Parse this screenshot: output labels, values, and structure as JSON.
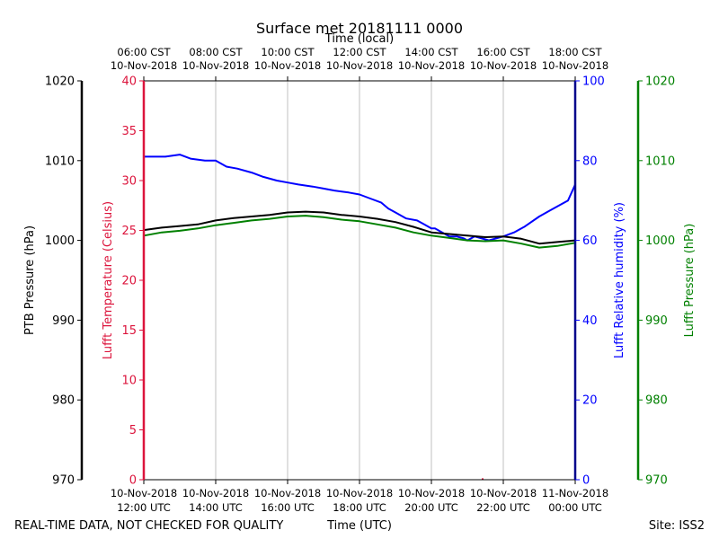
{
  "chart_data": {
    "type": "line",
    "title": "Surface met 20181111 0000",
    "top_axis_label": "Time (local)",
    "bottom_axis_label": "Time (UTC)",
    "footer_left": "REAL-TIME DATA, NOT CHECKED FOR QUALITY",
    "footer_right": "Site: ISS2",
    "x_range_hours_utc": [
      12,
      24
    ],
    "bottom_ticks": [
      {
        "h": 12,
        "date": "10-Nov-2018",
        "time": "12:00 UTC"
      },
      {
        "h": 14,
        "date": "10-Nov-2018",
        "time": "14:00 UTC"
      },
      {
        "h": 16,
        "date": "10-Nov-2018",
        "time": "16:00 UTC"
      },
      {
        "h": 18,
        "date": "10-Nov-2018",
        "time": "18:00 UTC"
      },
      {
        "h": 20,
        "date": "10-Nov-2018",
        "time": "20:00 UTC"
      },
      {
        "h": 22,
        "date": "10-Nov-2018",
        "time": "22:00 UTC"
      },
      {
        "h": 24,
        "date": "11-Nov-2018",
        "time": "00:00 UTC"
      }
    ],
    "top_ticks": [
      {
        "h": 12,
        "time": "06:00 CST",
        "date": "10-Nov-2018"
      },
      {
        "h": 14,
        "time": "08:00 CST",
        "date": "10-Nov-2018"
      },
      {
        "h": 16,
        "time": "10:00 CST",
        "date": "10-Nov-2018"
      },
      {
        "h": 18,
        "time": "12:00 CST",
        "date": "10-Nov-2018"
      },
      {
        "h": 20,
        "time": "14:00 CST",
        "date": "10-Nov-2018"
      },
      {
        "h": 22,
        "time": "16:00 CST",
        "date": "10-Nov-2018"
      },
      {
        "h": 24,
        "time": "18:00 CST",
        "date": "10-Nov-2018"
      }
    ],
    "axes": {
      "ptb_pressure": {
        "label": "PTB Pressure (hPa)",
        "range": [
          970,
          1020
        ],
        "ticks": [
          "970",
          "980",
          "990",
          "1000",
          "1010",
          "1020"
        ],
        "color": "#000000"
      },
      "temperature": {
        "label": "Lufft Temperature (Celsius)",
        "range": [
          0,
          40
        ],
        "ticks": [
          "0",
          "5",
          "10",
          "15",
          "20",
          "25",
          "30",
          "35",
          "40"
        ],
        "color": "#dc143c"
      },
      "humidity": {
        "label": "Lufft Relative humidity (%)",
        "range": [
          0,
          100
        ],
        "ticks": [
          "0",
          "20",
          "40",
          "60",
          "80",
          "100"
        ],
        "color": "#0000ff"
      },
      "lufft_pressure": {
        "label": "Lufft Pressure (hPa)",
        "range": [
          970,
          1020
        ],
        "ticks": [
          "970",
          "980",
          "990",
          "1000",
          "1010",
          "1020"
        ],
        "color": "#008000"
      }
    },
    "series": [
      {
        "name": "Lufft Relative humidity",
        "axis": "humidity",
        "color": "#0000ff",
        "x": [
          12.0,
          12.3,
          12.6,
          13.0,
          13.3,
          13.7,
          14.0,
          14.3,
          14.6,
          15.0,
          15.3,
          15.7,
          16.0,
          16.3,
          16.7,
          17.0,
          17.3,
          17.7,
          18.0,
          18.3,
          18.6,
          18.8,
          19.0,
          19.3,
          19.6,
          19.8,
          20.0,
          20.1,
          20.3,
          20.5,
          20.7,
          20.9,
          21.0,
          21.2,
          21.4,
          21.6,
          21.8,
          22.0,
          22.3,
          22.6,
          23.0,
          23.3,
          23.6,
          23.8,
          24.0
        ],
        "values": [
          81,
          81,
          81,
          81.5,
          80.5,
          80,
          80,
          78.5,
          78,
          77,
          76,
          75,
          74.5,
          74,
          73.5,
          73,
          72.5,
          72,
          71.5,
          70.5,
          69.5,
          68,
          67,
          65.5,
          65,
          64,
          63,
          63,
          62,
          61,
          61,
          60.5,
          60,
          61,
          60.5,
          60,
          60.5,
          61,
          62,
          63.5,
          66,
          67.5,
          69,
          70,
          74
        ]
      },
      {
        "name": "PTB Pressure",
        "axis": "ptb_pressure",
        "color": "#000000",
        "x": [
          12.0,
          12.5,
          13.0,
          13.5,
          14.0,
          14.5,
          15.0,
          15.5,
          16.0,
          16.5,
          17.0,
          17.5,
          18.0,
          18.5,
          19.0,
          19.5,
          20.0,
          20.5,
          21.0,
          21.5,
          22.0,
          22.5,
          23.0,
          23.5,
          24.0
        ],
        "values": [
          1001.3,
          1001.6,
          1001.8,
          1002.0,
          1002.5,
          1002.8,
          1003.0,
          1003.2,
          1003.5,
          1003.6,
          1003.5,
          1003.2,
          1003.0,
          1002.7,
          1002.3,
          1001.7,
          1001.0,
          1000.8,
          1000.6,
          1000.4,
          1000.5,
          1000.2,
          999.6,
          999.8,
          1000.0
        ]
      },
      {
        "name": "Lufft Pressure",
        "axis": "lufft_pressure",
        "color": "#008000",
        "x": [
          12.0,
          12.5,
          13.0,
          13.5,
          14.0,
          14.5,
          15.0,
          15.5,
          16.0,
          16.5,
          17.0,
          17.5,
          18.0,
          18.5,
          19.0,
          19.5,
          20.0,
          20.5,
          21.0,
          21.5,
          22.0,
          22.5,
          23.0,
          23.5,
          24.0
        ],
        "values": [
          1000.6,
          1001.0,
          1001.2,
          1001.5,
          1001.9,
          1002.2,
          1002.5,
          1002.7,
          1003.0,
          1003.1,
          1002.9,
          1002.6,
          1002.4,
          1002.0,
          1001.6,
          1001.0,
          1000.6,
          1000.3,
          1000.0,
          999.9,
          1000.0,
          999.6,
          999.1,
          999.3,
          999.7
        ]
      },
      {
        "name": "Lufft Temperature",
        "axis": "temperature",
        "color": "#dc143c",
        "x": [
          21.4,
          21.45
        ],
        "values": [
          0.05,
          0.05
        ]
      }
    ]
  }
}
